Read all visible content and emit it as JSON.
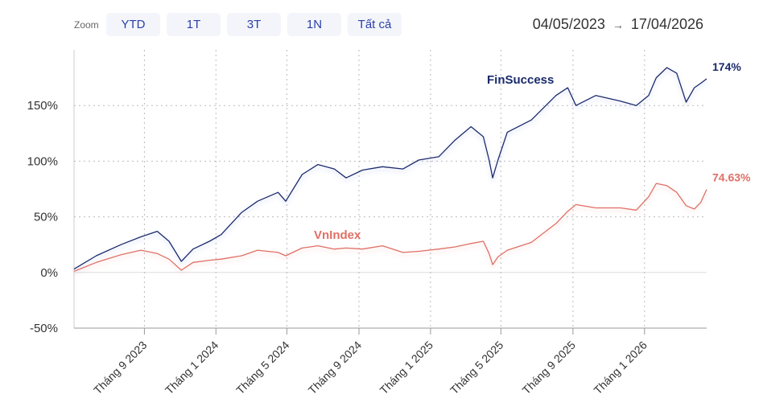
{
  "toolbar": {
    "zoom_label": "Zoom",
    "buttons": [
      "YTD",
      "1T",
      "3T",
      "1N",
      "Tất cả"
    ]
  },
  "range": {
    "start": "04/05/2023",
    "arrow": "→",
    "end": "17/04/2026"
  },
  "chart_data": {
    "type": "line",
    "title": "",
    "xlabel": "",
    "ylabel": "",
    "xlim": [
      "2023-05-04",
      "2026-04-17"
    ],
    "ylim": [
      -50,
      200
    ],
    "grid": true,
    "yticks": [
      -50,
      0,
      50,
      100,
      150
    ],
    "ytick_labels": [
      "-50%",
      "0%",
      "50%",
      "100%",
      "150%"
    ],
    "xticks": [
      "2023-09-01",
      "2024-01-01",
      "2024-05-01",
      "2024-09-01",
      "2025-01-01",
      "2025-05-01",
      "2025-09-01",
      "2026-01-01"
    ],
    "xtick_labels": [
      "Tháng 9 2023",
      "Tháng 1 2024",
      "Tháng 5 2024",
      "Tháng 9 2024",
      "Tháng 1 2025",
      "Tháng 5 2025",
      "Tháng 9 2025",
      "Tháng 1 2026"
    ],
    "x": [
      "2023-05-04",
      "2023-06-11",
      "2023-07-23",
      "2023-08-26",
      "2023-09-23",
      "2023-10-13",
      "2023-11-03",
      "2023-11-23",
      "2023-12-21",
      "2024-01-10",
      "2024-02-14",
      "2024-03-12",
      "2024-04-16",
      "2024-04-29",
      "2024-05-27",
      "2024-06-23",
      "2024-07-21",
      "2024-08-10",
      "2024-09-07",
      "2024-10-11",
      "2024-11-15",
      "2024-12-12",
      "2025-01-15",
      "2025-02-12",
      "2025-03-11",
      "2025-04-01",
      "2025-04-11",
      "2025-04-17",
      "2025-04-26",
      "2025-05-12",
      "2025-06-22",
      "2025-08-03",
      "2025-08-23",
      "2025-09-06",
      "2025-10-10",
      "2025-11-21",
      "2025-12-18",
      "2026-01-08",
      "2026-01-21",
      "2026-02-08",
      "2026-02-25",
      "2026-03-13",
      "2026-03-27",
      "2026-04-07",
      "2026-04-17"
    ],
    "series": [
      {
        "name": "FinSuccess",
        "color": "#1a2a6c",
        "end_label": "174%",
        "values": [
          3,
          15,
          25,
          32,
          37,
          28,
          10,
          21,
          28,
          34,
          54,
          64,
          72,
          64,
          88,
          97,
          93,
          85,
          92,
          95,
          93,
          101,
          104,
          119,
          131,
          122,
          101,
          85,
          101,
          126,
          137,
          159,
          166,
          150,
          159,
          154,
          150,
          159,
          175,
          184,
          179,
          153,
          166,
          170,
          174
        ]
      },
      {
        "name": "VnIndex",
        "color": "#e07066",
        "end_label": "74.63%",
        "values": [
          1,
          9,
          16,
          20,
          17,
          12,
          2,
          9,
          11,
          12,
          15,
          20,
          18,
          15,
          22,
          24,
          21,
          22,
          21,
          24,
          18,
          19,
          21,
          23,
          26,
          28,
          17,
          7,
          14,
          20,
          27,
          44,
          55,
          61,
          58,
          58,
          56,
          68,
          80,
          78,
          72,
          60,
          57,
          63,
          74.63
        ]
      }
    ]
  }
}
